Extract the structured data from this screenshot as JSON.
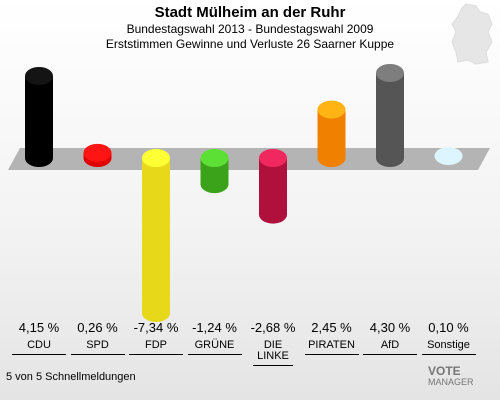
{
  "header": {
    "title": "Stadt Mülheim an der Ruhr",
    "subtitle1": "Bundestagswahl 2013 - Bundestagswahl 2009",
    "subtitle2": "Erststimmen Gewinne und Verluste 26 Saarner Kuppe"
  },
  "footnote": "5 von 5 Schnellmeldungen",
  "logo": {
    "line1": "VOTE",
    "line2": "MANAGER"
  },
  "chart_data": {
    "type": "bar",
    "title": "Stadt Mülheim an der Ruhr",
    "subtitle": "Bundestagswahl 2013 - Bundestagswahl 2009",
    "categories": [
      "CDU",
      "SPD",
      "FDP",
      "GRÜNE",
      "DIE LINKE",
      "PIRATEN",
      "AfD",
      "Sonstige"
    ],
    "values": [
      4.15,
      0.26,
      -7.34,
      -1.24,
      -2.68,
      2.45,
      4.3,
      0.1
    ],
    "value_labels": [
      "4,15 %",
      "0,26 %",
      "-7,34 %",
      "-1,24 %",
      "-2,68 %",
      "2,45 %",
      "4,30 %",
      "0,10 %"
    ],
    "colors": [
      "#000000",
      "#e00000",
      "#e8d81a",
      "#3aa31a",
      "#b0103c",
      "#f08000",
      "#555555",
      "#a0b4e8"
    ],
    "ylim": [
      -7.34,
      4.3
    ],
    "grid": false,
    "legend": "none"
  }
}
